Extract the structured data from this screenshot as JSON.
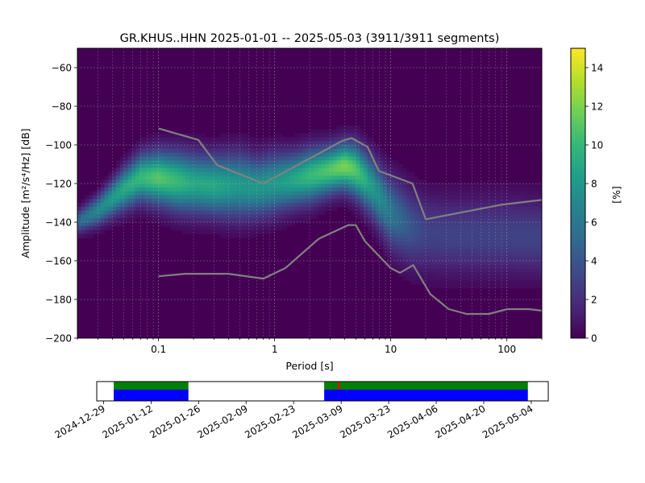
{
  "figure": {
    "title": "GR.KHUS..HHN   2025-01-01 -- 2025-05-03  (3911/3911 segments)"
  },
  "chart_data": [
    {
      "type": "heatmap",
      "title": "GR.KHUS..HHN   2025-01-01 -- 2025-05-03  (3911/3911 segments)",
      "xlabel": "Period [s]",
      "ylabel": "Amplitude [m²/s⁴/Hz] [dB]",
      "x_scale": "log",
      "xlim": [
        0.02,
        200
      ],
      "ylim": [
        -200,
        -50
      ],
      "xticks": [
        {
          "value": 0.1,
          "label": "0.1"
        },
        {
          "value": 1,
          "label": "1"
        },
        {
          "value": 10,
          "label": "10"
        },
        {
          "value": 100,
          "label": "100"
        }
      ],
      "yticks": [
        {
          "value": -60,
          "label": "−60"
        },
        {
          "value": -80,
          "label": "−80"
        },
        {
          "value": -100,
          "label": "−100"
        },
        {
          "value": -120,
          "label": "−120"
        },
        {
          "value": -140,
          "label": "−140"
        },
        {
          "value": -160,
          "label": "−160"
        },
        {
          "value": -180,
          "label": "−180"
        },
        {
          "value": -200,
          "label": "−200"
        }
      ],
      "grid": true,
      "colormap": [
        "#440154",
        "#482878",
        "#3e4989",
        "#31688e",
        "#26828e",
        "#1f9e89",
        "#35b779",
        "#6ece58",
        "#b5de2b",
        "#fde725"
      ],
      "colorbar": {
        "label": "[%]",
        "range": [
          0,
          15
        ],
        "ticks": [
          {
            "value": 0,
            "label": "0"
          },
          {
            "value": 2,
            "label": "2"
          },
          {
            "value": 4,
            "label": "4"
          },
          {
            "value": 6,
            "label": "6"
          },
          {
            "value": 8,
            "label": "8"
          },
          {
            "value": 10,
            "label": "10"
          },
          {
            "value": 12,
            "label": "12"
          },
          {
            "value": 14,
            "label": "14"
          }
        ]
      },
      "density_ridge": {
        "periods": [
          0.02,
          0.03,
          0.05,
          0.07,
          0.1,
          0.15,
          0.2,
          0.3,
          0.5,
          0.7,
          1,
          1.5,
          2,
          3,
          4,
          5,
          7,
          10,
          15,
          20,
          30,
          50,
          100,
          200
        ],
        "center_db": [
          -140,
          -134,
          -123,
          -117,
          -117,
          -119,
          -120,
          -121,
          -121,
          -122,
          -120,
          -118,
          -116,
          -113,
          -111,
          -113,
          -122,
          -135,
          -143,
          -146,
          -147,
          -147,
          -147,
          -148
        ],
        "width_db": [
          4,
          5,
          7,
          8,
          9,
          10,
          10,
          10,
          11,
          10,
          10,
          9,
          9,
          8,
          8,
          9,
          10,
          12,
          13,
          13,
          13,
          13,
          13,
          13
        ],
        "peak_percent": [
          5,
          7,
          9,
          10,
          11,
          10,
          9,
          9,
          8,
          8,
          8,
          9,
          10,
          11,
          12,
          11,
          8,
          6,
          4,
          3,
          3,
          3,
          3,
          3
        ]
      },
      "series": [
        {
          "periods": [
            0.1,
            0.17,
            0.4,
            0.8,
            1.24,
            2.4,
            4.3,
            5,
            6,
            10,
            12,
            15.6,
            21.9,
            31.6,
            45,
            70,
            101,
            154,
            200
          ],
          "values": [
            -168,
            -166.7,
            -166.7,
            -169.2,
            -163.7,
            -148.6,
            -141.5,
            -141.5,
            -149.9,
            -163.8,
            -166.2,
            -162.2,
            -177.2,
            -185,
            -187.5,
            -187.5,
            -185,
            -185,
            -185.8
          ]
        },
        {
          "periods": [
            0.1,
            0.22,
            0.32,
            0.8,
            3.8,
            4.6,
            6.3,
            7.9,
            15.4,
            20,
            89,
            200
          ],
          "values": [
            -91.5,
            -97.4,
            -110.5,
            -120,
            -98,
            -96.5,
            -101,
            -113.5,
            -120,
            -138.5,
            -131,
            -128.5
          ]
        }
      ],
      "series_color": "#808080"
    },
    {
      "type": "timeline",
      "xlim": [
        "2024-12-27",
        "2025-05-09"
      ],
      "xticks": [
        "2024-12-29",
        "2025-01-12",
        "2025-01-26",
        "2025-02-09",
        "2025-02-23",
        "2025-03-09",
        "2025-03-23",
        "2025-04-06",
        "2025-04-20",
        "2025-05-04"
      ],
      "available_segments": [
        {
          "start": "2025-01-01",
          "end": "2025-01-23"
        },
        {
          "start": "2025-03-04",
          "end": "2025-05-03"
        }
      ],
      "gaps": [
        {
          "start": "2025-03-08",
          "end": "2025-03-09"
        }
      ],
      "colors": {
        "used": "#008000",
        "available": "#0000ff",
        "gap": "#ff0000"
      }
    }
  ]
}
